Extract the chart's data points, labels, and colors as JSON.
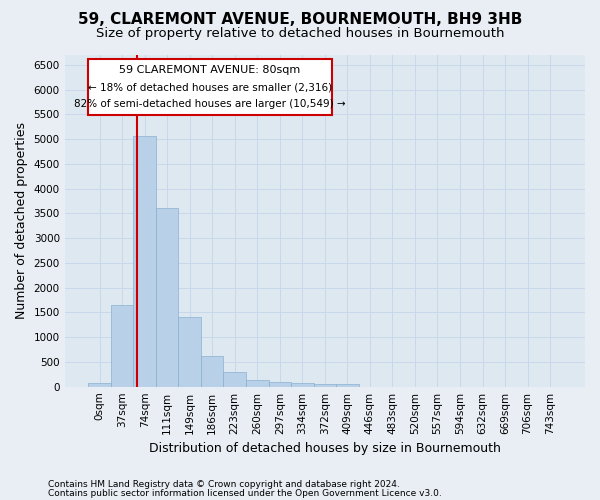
{
  "title": "59, CLAREMONT AVENUE, BOURNEMOUTH, BH9 3HB",
  "subtitle": "Size of property relative to detached houses in Bournemouth",
  "xlabel": "Distribution of detached houses by size in Bournemouth",
  "ylabel": "Number of detached properties",
  "footer_line1": "Contains HM Land Registry data © Crown copyright and database right 2024.",
  "footer_line2": "Contains public sector information licensed under the Open Government Licence v3.0.",
  "bar_labels": [
    "0sqm",
    "37sqm",
    "74sqm",
    "111sqm",
    "149sqm",
    "186sqm",
    "223sqm",
    "260sqm",
    "297sqm",
    "334sqm",
    "372sqm",
    "409sqm",
    "446sqm",
    "483sqm",
    "520sqm",
    "557sqm",
    "594sqm",
    "632sqm",
    "669sqm",
    "706sqm",
    "743sqm"
  ],
  "bar_values": [
    70,
    1650,
    5060,
    3600,
    1410,
    620,
    290,
    130,
    90,
    70,
    50,
    60,
    0,
    0,
    0,
    0,
    0,
    0,
    0,
    0,
    0
  ],
  "bar_color": "#b8d0e8",
  "bar_edge_color": "#8ab0d0",
  "annotation_title": "59 CLAREMONT AVENUE: 80sqm",
  "annotation_line1": "← 18% of detached houses are smaller (2,316)",
  "annotation_line2": "82% of semi-detached houses are larger (10,549) →",
  "annotation_box_color": "#ffffff",
  "annotation_box_edge": "#cc0000",
  "vline_color": "#cc0000",
  "ylim": [
    0,
    6700
  ],
  "yticks": [
    0,
    500,
    1000,
    1500,
    2000,
    2500,
    3000,
    3500,
    4000,
    4500,
    5000,
    5500,
    6000,
    6500
  ],
  "grid_color": "#c8d8ea",
  "bg_color": "#dde8f0",
  "fig_bg_color": "#e8eef4",
  "title_fontsize": 11,
  "subtitle_fontsize": 9.5,
  "label_fontsize": 9,
  "tick_fontsize": 7.5,
  "footer_fontsize": 6.5
}
